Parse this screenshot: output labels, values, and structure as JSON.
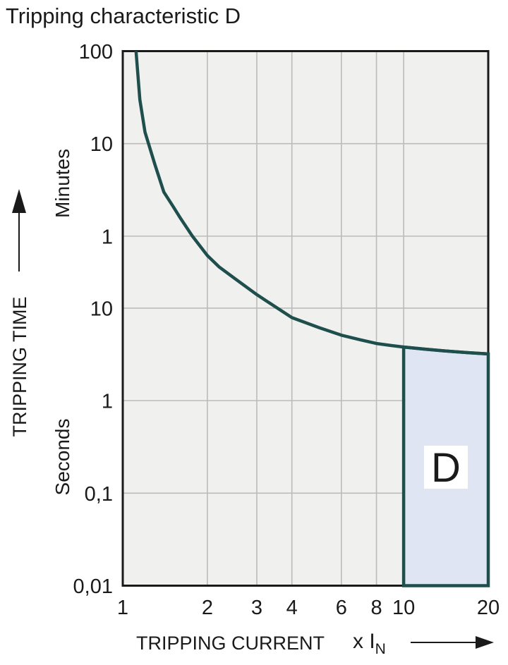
{
  "title": "Tripping characteristic D",
  "y_axis": {
    "label": "TRIPPING TIME",
    "minutes_label": "Minutes",
    "seconds_label": "Seconds"
  },
  "x_axis": {
    "label": "TRIPPING CURRENT",
    "unit_main": "x I",
    "unit_sub": "N"
  },
  "region": {
    "label": "D"
  },
  "colors": {
    "curve": "#1e4f4c",
    "region_fill": "#dfe5f2",
    "region_border": "#1e4f4c",
    "plot_bg": "#f0f0ef",
    "grid": "#bbbbbb",
    "frame": "#1a1a1a",
    "text": "#1a1a1a",
    "region_label_bg": "#ffffff"
  },
  "chart_data": {
    "type": "line",
    "title": "Tripping characteristic D",
    "xlabel": "TRIPPING CURRENT (x IN)",
    "ylabel": "TRIPPING TIME",
    "x_scale": "log",
    "y_scale": "log",
    "xlim": [
      1,
      20
    ],
    "ylim_seconds": [
      0.01,
      6000
    ],
    "grid": true,
    "x_ticks": [
      {
        "v": 1,
        "label": "1"
      },
      {
        "v": 2,
        "label": "2"
      },
      {
        "v": 3,
        "label": "3"
      },
      {
        "v": 4,
        "label": "4"
      },
      {
        "v": 6,
        "label": "6"
      },
      {
        "v": 8,
        "label": "8"
      },
      {
        "v": 10,
        "label": "10"
      },
      {
        "v": 20,
        "label": "20"
      }
    ],
    "y_ticks": [
      {
        "t": 6000,
        "label": "100",
        "unit": "minutes"
      },
      {
        "t": 600,
        "label": "10",
        "unit": "minutes"
      },
      {
        "t": 60,
        "label": "1",
        "unit": "minutes"
      },
      {
        "t": 10,
        "label": "10",
        "unit": "seconds"
      },
      {
        "t": 1,
        "label": "1",
        "unit": "seconds"
      },
      {
        "t": 0.1,
        "label": "0,1",
        "unit": "seconds"
      },
      {
        "t": 0.01,
        "label": "0,01",
        "unit": "seconds"
      }
    ],
    "series": [
      {
        "name": "D tripping curve (time in seconds vs multiple of rated current)",
        "points": [
          [
            1.115,
            6000
          ],
          [
            1.15,
            1800
          ],
          [
            1.2,
            800
          ],
          [
            1.3,
            360
          ],
          [
            1.4,
            180
          ],
          [
            1.5,
            130
          ],
          [
            1.6,
            95
          ],
          [
            1.77,
            60
          ],
          [
            2.0,
            37
          ],
          [
            2.2,
            28
          ],
          [
            2.5,
            21
          ],
          [
            3.0,
            14
          ],
          [
            3.5,
            10.3
          ],
          [
            4.0,
            7.9
          ],
          [
            5.0,
            6.15
          ],
          [
            6.0,
            5.1
          ],
          [
            7.0,
            4.55
          ],
          [
            8.0,
            4.15
          ],
          [
            9.0,
            3.95
          ],
          [
            10.0,
            3.8
          ],
          [
            12.0,
            3.6
          ],
          [
            14.0,
            3.45
          ],
          [
            17.0,
            3.3
          ],
          [
            20.0,
            3.2
          ]
        ]
      }
    ],
    "region": {
      "label": "D",
      "x_from": 10,
      "x_to": 20,
      "t_bottom": 0.01,
      "bounded_above_by": "curve"
    }
  }
}
